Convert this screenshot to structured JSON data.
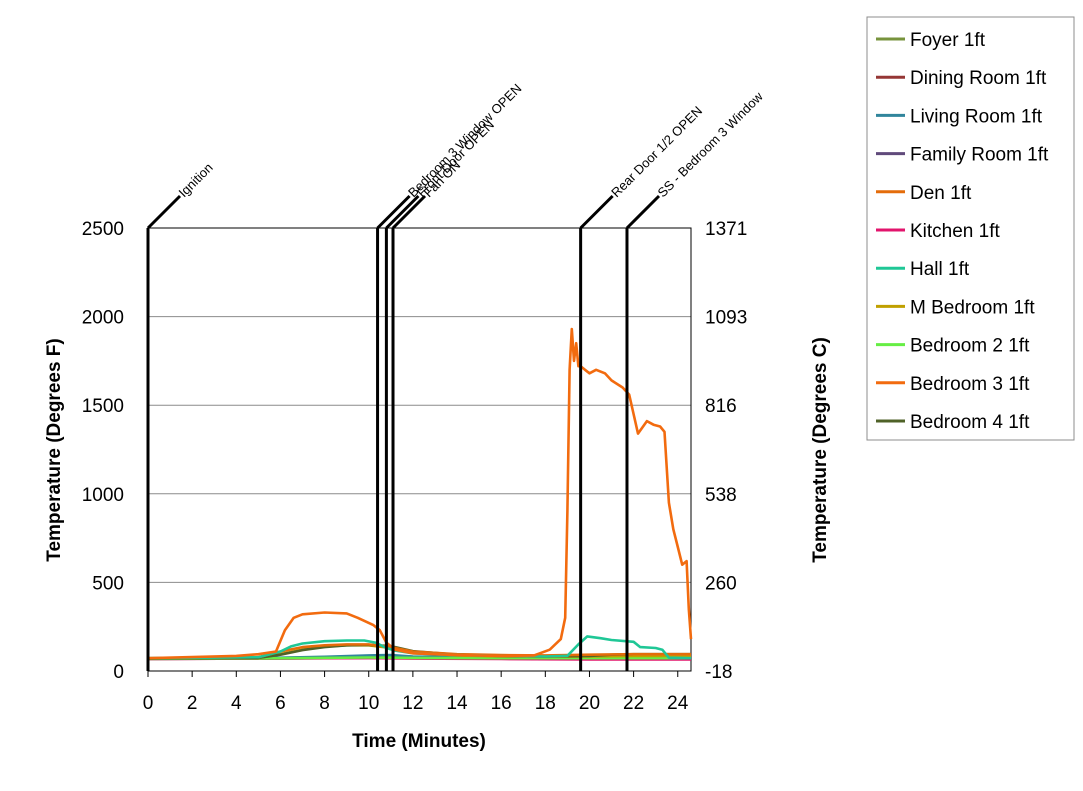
{
  "chart_data": {
    "type": "line",
    "title": "",
    "xlabel": "Time (Minutes)",
    "ylabel": "Temperature (Degrees F)",
    "ylabel_right": "Temperature (Degrees C)",
    "xlim": [
      0,
      24.6
    ],
    "ylim": [
      0,
      2500
    ],
    "x_ticks": [
      0,
      2,
      4,
      6,
      8,
      10,
      12,
      14,
      16,
      18,
      20,
      22,
      24
    ],
    "y_ticks": [
      0,
      500,
      1000,
      1500,
      2000,
      2500
    ],
    "y_right_ticks": [
      {
        "value": 0,
        "label": "-18"
      },
      {
        "value": 500,
        "label": "260"
      },
      {
        "value": 1000,
        "label": "538"
      },
      {
        "value": 1500,
        "label": "816"
      },
      {
        "value": 2000,
        "label": "1093"
      },
      {
        "value": 2500,
        "label": "1371"
      }
    ],
    "grid": "horizontal",
    "legend_position": "right",
    "events": [
      {
        "x": 0,
        "label": "Ignition"
      },
      {
        "x": 10.4,
        "label": "Bedroom 3 Window OPEN"
      },
      {
        "x": 10.8,
        "label": "Front Door OPEN"
      },
      {
        "x": 11.1,
        "label": "Fan ON"
      },
      {
        "x": 19.6,
        "label": "Rear Door 1/2 OPEN"
      },
      {
        "x": 21.7,
        "label": "SS - Bedroom 3 Window"
      }
    ],
    "series": [
      {
        "name": "Foyer 1ft",
        "color": "#77933c",
        "points": [
          [
            0,
            70
          ],
          [
            5,
            72
          ],
          [
            8,
            78
          ],
          [
            10,
            82
          ],
          [
            11,
            85
          ],
          [
            12,
            80
          ],
          [
            16,
            75
          ],
          [
            20,
            74
          ],
          [
            24.6,
            75
          ]
        ]
      },
      {
        "name": "Dining Room 1ft",
        "color": "#953735",
        "points": [
          [
            0,
            68
          ],
          [
            5,
            70
          ],
          [
            10,
            75
          ],
          [
            12,
            72
          ],
          [
            16,
            70
          ],
          [
            20,
            68
          ],
          [
            24.6,
            68
          ]
        ]
      },
      {
        "name": "Living Room 1ft",
        "color": "#31859c",
        "points": [
          [
            0,
            70
          ],
          [
            5,
            72
          ],
          [
            8,
            80
          ],
          [
            10,
            88
          ],
          [
            11,
            90
          ],
          [
            12,
            82
          ],
          [
            16,
            76
          ],
          [
            20,
            74
          ],
          [
            24.6,
            74
          ]
        ]
      },
      {
        "name": "Family Room 1ft",
        "color": "#604a7b",
        "points": [
          [
            0,
            69
          ],
          [
            5,
            70
          ],
          [
            10,
            74
          ],
          [
            12,
            72
          ],
          [
            16,
            70
          ],
          [
            20,
            69
          ],
          [
            24.6,
            69
          ]
        ]
      },
      {
        "name": "Den 1ft",
        "color": "#e46c0a",
        "points": [
          [
            0,
            72
          ],
          [
            5,
            78
          ],
          [
            6,
            110
          ],
          [
            7,
            135
          ],
          [
            8,
            145
          ],
          [
            9,
            150
          ],
          [
            10,
            150
          ],
          [
            11,
            135
          ],
          [
            12,
            110
          ],
          [
            14,
            95
          ],
          [
            16,
            90
          ],
          [
            18,
            88
          ],
          [
            20,
            92
          ],
          [
            22,
            95
          ],
          [
            24.6,
            95
          ]
        ]
      },
      {
        "name": "Kitchen 1ft",
        "color": "#e2146c",
        "points": [
          [
            0,
            68
          ],
          [
            5,
            70
          ],
          [
            10,
            73
          ],
          [
            12,
            70
          ],
          [
            16,
            68
          ],
          [
            20,
            65
          ],
          [
            24.6,
            65
          ]
        ]
      },
      {
        "name": "Hall 1ft",
        "color": "#1fc796",
        "points": [
          [
            0,
            72
          ],
          [
            5,
            78
          ],
          [
            6,
            110
          ],
          [
            6.5,
            140
          ],
          [
            7,
            155
          ],
          [
            8,
            168
          ],
          [
            9,
            172
          ],
          [
            9.8,
            172
          ],
          [
            10.3,
            160
          ],
          [
            10.8,
            130
          ],
          [
            11.2,
            115
          ],
          [
            12,
            100
          ],
          [
            14,
            90
          ],
          [
            16,
            85
          ],
          [
            18,
            82
          ],
          [
            19.0,
            86
          ],
          [
            19.5,
            150
          ],
          [
            19.9,
            195
          ],
          [
            20.5,
            185
          ],
          [
            21,
            175
          ],
          [
            22,
            165
          ],
          [
            22.3,
            135
          ],
          [
            23,
            130
          ],
          [
            23.3,
            120
          ],
          [
            23.6,
            75
          ],
          [
            24.6,
            72
          ]
        ]
      },
      {
        "name": "M Bedroom 1ft",
        "color": "#c0a000",
        "points": [
          [
            0,
            70
          ],
          [
            5,
            74
          ],
          [
            6,
            95
          ],
          [
            7,
            120
          ],
          [
            8,
            138
          ],
          [
            9,
            145
          ],
          [
            10,
            145
          ],
          [
            11,
            130
          ],
          [
            12,
            105
          ],
          [
            14,
            88
          ],
          [
            16,
            82
          ],
          [
            18,
            80
          ],
          [
            20,
            82
          ],
          [
            22,
            85
          ],
          [
            24.6,
            85
          ]
        ]
      },
      {
        "name": "Bedroom 2 1ft",
        "color": "#66ee44",
        "points": [
          [
            0,
            69
          ],
          [
            5,
            71
          ],
          [
            10,
            76
          ],
          [
            12,
            74
          ],
          [
            16,
            72
          ],
          [
            20,
            72
          ],
          [
            24.6,
            72
          ]
        ]
      },
      {
        "name": "Bedroom 3 1ft",
        "color": "#f26b0f",
        "points": [
          [
            0,
            72
          ],
          [
            4,
            85
          ],
          [
            5,
            95
          ],
          [
            5.8,
            110
          ],
          [
            6.2,
            230
          ],
          [
            6.6,
            300
          ],
          [
            7,
            320
          ],
          [
            8,
            330
          ],
          [
            9,
            325
          ],
          [
            9.5,
            300
          ],
          [
            10.2,
            260
          ],
          [
            10.5,
            230
          ],
          [
            10.8,
            160
          ],
          [
            11.2,
            120
          ],
          [
            12,
            100
          ],
          [
            14,
            90
          ],
          [
            16,
            85
          ],
          [
            17.5,
            88
          ],
          [
            18.2,
            120
          ],
          [
            18.7,
            180
          ],
          [
            18.9,
            300
          ],
          [
            19.0,
            900
          ],
          [
            19.1,
            1700
          ],
          [
            19.2,
            1930
          ],
          [
            19.3,
            1750
          ],
          [
            19.4,
            1850
          ],
          [
            19.5,
            1720
          ],
          [
            19.6,
            1720
          ],
          [
            19.8,
            1700
          ],
          [
            20,
            1680
          ],
          [
            20.3,
            1700
          ],
          [
            20.7,
            1680
          ],
          [
            21,
            1640
          ],
          [
            21.5,
            1600
          ],
          [
            21.8,
            1560
          ],
          [
            22,
            1450
          ],
          [
            22.2,
            1340
          ],
          [
            22.6,
            1410
          ],
          [
            22.9,
            1390
          ],
          [
            23.2,
            1380
          ],
          [
            23.4,
            1350
          ],
          [
            23.6,
            950
          ],
          [
            23.8,
            800
          ],
          [
            24.0,
            700
          ],
          [
            24.2,
            600
          ],
          [
            24.4,
            620
          ],
          [
            24.5,
            350
          ],
          [
            24.6,
            180
          ]
        ]
      },
      {
        "name": "Bedroom 4 1ft",
        "color": "#4f6228",
        "points": [
          [
            0,
            70
          ],
          [
            5,
            74
          ],
          [
            6,
            92
          ],
          [
            7,
            118
          ],
          [
            8,
            135
          ],
          [
            9,
            145
          ],
          [
            10,
            148
          ],
          [
            11,
            140
          ],
          [
            12,
            112
          ],
          [
            14,
            92
          ],
          [
            16,
            85
          ],
          [
            18,
            82
          ],
          [
            20,
            85
          ],
          [
            21,
            92
          ],
          [
            22,
            95
          ],
          [
            24.6,
            95
          ]
        ]
      }
    ]
  }
}
